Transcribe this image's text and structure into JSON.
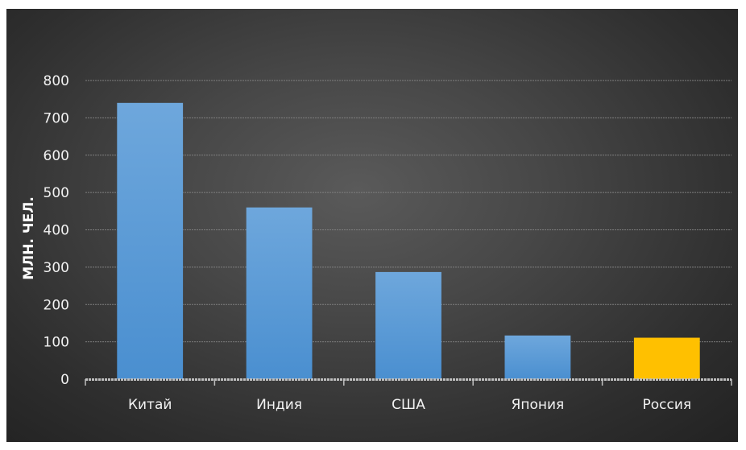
{
  "chart_data": {
    "type": "bar",
    "title": "",
    "xlabel": "",
    "ylabel": "МЛН. ЧЕЛ.",
    "categories": [
      "Китай",
      "Индия",
      "США",
      "Япония",
      "Россия"
    ],
    "values": [
      740,
      460,
      287,
      117,
      111
    ],
    "ylim": [
      0,
      800
    ],
    "yticks": [
      "0",
      "100",
      "200",
      "300",
      "400",
      "500",
      "600",
      "700",
      "800"
    ],
    "grid": true,
    "legend": "none",
    "colors": {
      "bar": "#5b9bd5",
      "highlight": "#ffc000",
      "highlight_category": "Россия",
      "grid": "#7f7f7f",
      "axis": "#bfbfbf"
    }
  }
}
